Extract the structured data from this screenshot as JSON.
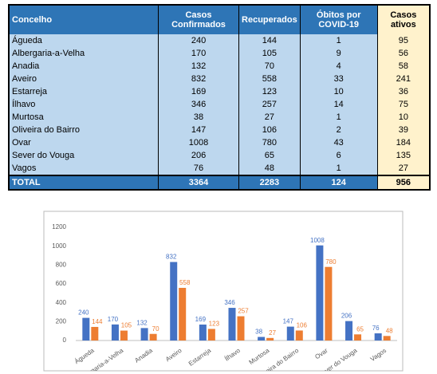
{
  "table": {
    "header": [
      "Concelho",
      "Casos Confirmados",
      "Recuperados",
      "Óbitos por COVID-19",
      "Casos ativos"
    ],
    "rows": [
      [
        "Águeda",
        240,
        144,
        1,
        95
      ],
      [
        "Albergaria-a-Velha",
        170,
        105,
        9,
        56
      ],
      [
        "Anadia",
        132,
        70,
        4,
        58
      ],
      [
        "Aveiro",
        832,
        558,
        33,
        241
      ],
      [
        "Estarreja",
        169,
        123,
        10,
        36
      ],
      [
        "Ílhavo",
        346,
        257,
        14,
        75
      ],
      [
        "Murtosa",
        38,
        27,
        1,
        10
      ],
      [
        "Oliveira do Bairro",
        147,
        106,
        2,
        39
      ],
      [
        "Ovar",
        1008,
        780,
        43,
        184
      ],
      [
        "Sever do Vouga",
        206,
        65,
        6,
        135
      ],
      [
        "Vagos",
        76,
        48,
        1,
        27
      ]
    ],
    "total": [
      "TOTAL",
      3364,
      2283,
      124,
      956
    ]
  },
  "chart_data": {
    "type": "bar",
    "categories": [
      "Águeda",
      "Albergaria-a-Velha",
      "Anadia",
      "Aveiro",
      "Estarreja",
      "Ílhavo",
      "Murtosa",
      "Oliveira do Bairro",
      "Ovar",
      "Sever do Vouga",
      "Vagos"
    ],
    "series": [
      {
        "color": "#4472c4",
        "values": [
          240,
          170,
          132,
          832,
          169,
          346,
          38,
          147,
          1008,
          206,
          76
        ]
      },
      {
        "color": "#ed7d31",
        "values": [
          144,
          105,
          70,
          558,
          123,
          257,
          27,
          106,
          780,
          65,
          48
        ]
      }
    ],
    "ylim": [
      0,
      1200
    ],
    "yticks": [
      0,
      200,
      400,
      600,
      800,
      1000,
      1200
    ],
    "grid": false
  }
}
